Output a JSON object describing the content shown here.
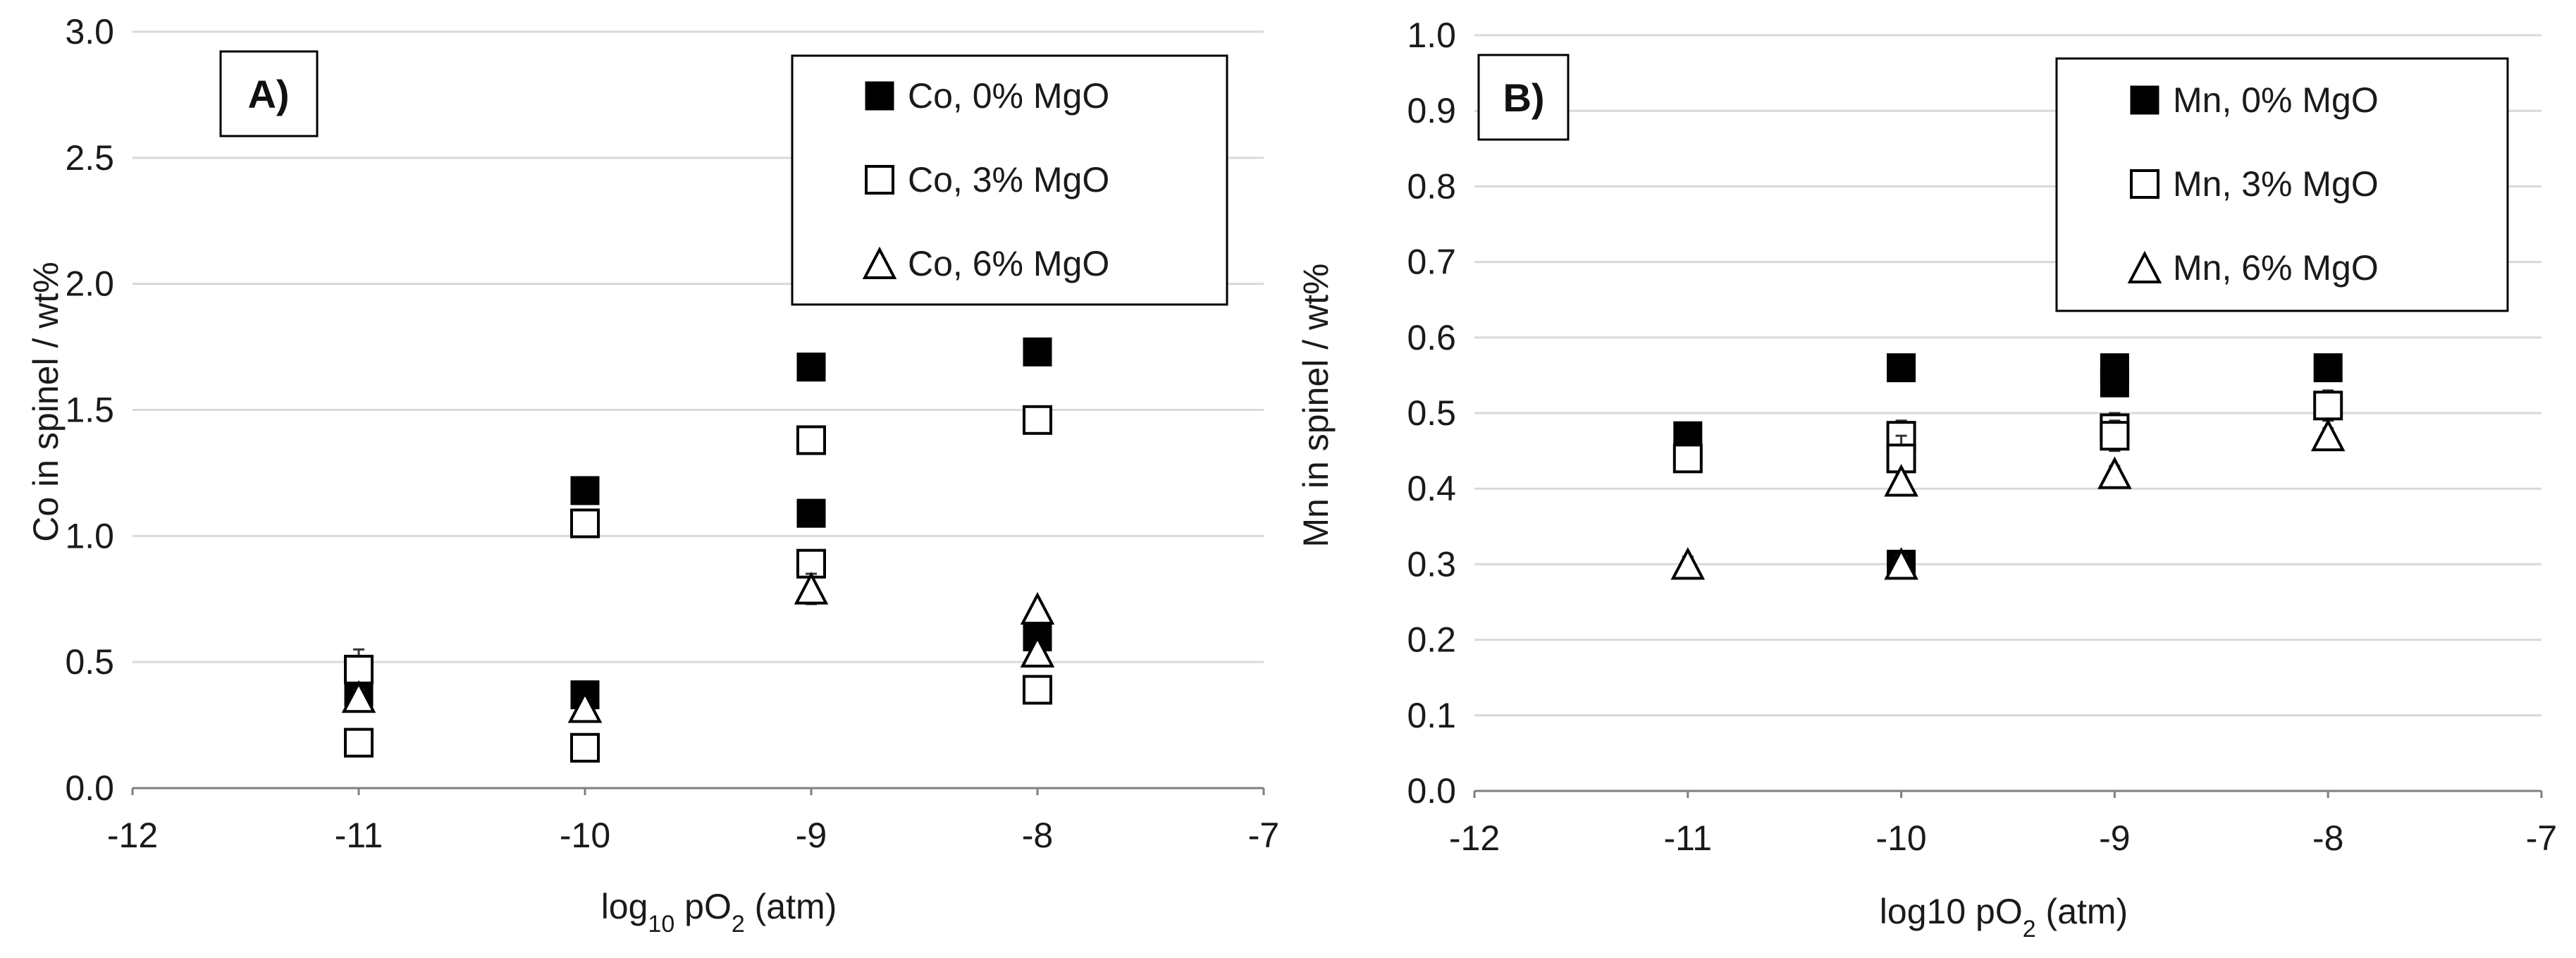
{
  "chart_data": [
    {
      "type": "scatter",
      "panel_label": "A)",
      "ylabel": "Co  in spinel / wt%",
      "xlabel": {
        "prefix": "log",
        "subscript": "10",
        "middle": " pO",
        "sub2": "2",
        "suffix": " (atm)"
      },
      "xlim": [
        -12,
        -7
      ],
      "ylim": [
        0,
        3.0
      ],
      "x_ticks": [
        -12,
        -11,
        -10,
        -9,
        -8,
        -7
      ],
      "x_tick_labels": [
        "-12",
        "-11",
        "-10",
        "-9",
        "-8",
        "-7"
      ],
      "y_ticks": [
        0,
        0.5,
        1.0,
        1.5,
        2.0,
        2.5,
        3.0
      ],
      "y_tick_labels": [
        "0.0",
        "0.5",
        "1.0",
        "1.5",
        "2.0",
        "2.5",
        "3.0"
      ],
      "grid": "horizontal",
      "legend_position": "top-right",
      "series": [
        {
          "name": "Co, 0% MgO",
          "marker": "filled-square",
          "x": [
            -11,
            -10,
            -10,
            -9,
            -9,
            -8,
            -8
          ],
          "y": [
            0.38,
            1.18,
            0.37,
            1.67,
            1.09,
            1.73,
            0.6
          ],
          "err": [
            0.02,
            0.02,
            0.02,
            0.02,
            0.02,
            0.02,
            0.02
          ]
        },
        {
          "name": "Co, 3% MgO",
          "marker": "open-square",
          "x": [
            -11,
            -11,
            -10,
            -10,
            -9,
            -9,
            -8,
            -8
          ],
          "y": [
            0.47,
            0.18,
            1.05,
            0.16,
            1.38,
            0.89,
            1.46,
            0.39
          ],
          "err": [
            0.08,
            0.03,
            0.05,
            0.02,
            0.05,
            0.03,
            0.02,
            0.02
          ]
        },
        {
          "name": "Co, 6% MgO",
          "marker": "open-triangle",
          "x": [
            -11,
            -10,
            -9,
            -8,
            -8
          ],
          "y": [
            0.36,
            0.32,
            0.79,
            0.71,
            0.54
          ],
          "err": [
            0.03,
            0.03,
            0.06,
            0.02,
            0.02
          ]
        }
      ]
    },
    {
      "type": "scatter",
      "panel_label": "B)",
      "ylabel": "Mn  in spinel / wt%",
      "xlabel": {
        "prefix": "log10",
        "subscript": "",
        "middle": " pO",
        "sub2": "2",
        "suffix": " (atm)"
      },
      "xlim": [
        -12,
        -7
      ],
      "ylim": [
        0,
        1.0
      ],
      "x_ticks": [
        -12,
        -11,
        -10,
        -9,
        -8,
        -7
      ],
      "x_tick_labels": [
        "-12",
        "-11",
        "-10",
        "-9",
        "-8",
        "-7"
      ],
      "y_ticks": [
        0,
        0.1,
        0.2,
        0.3,
        0.4,
        0.5,
        0.6,
        0.7,
        0.8,
        0.9,
        1.0
      ],
      "y_tick_labels": [
        "0.0",
        "0.1",
        "0.2",
        "0.3",
        "0.4",
        "0.5",
        "0.6",
        "0.7",
        "0.8",
        "0.9",
        "1.0"
      ],
      "grid": "horizontal",
      "legend_position": "top-right",
      "series": [
        {
          "name": "Mn, 0% MgO",
          "marker": "filled-square",
          "x": [
            -11,
            -10,
            -10,
            -9,
            -9,
            -8
          ],
          "y": [
            0.47,
            0.56,
            0.3,
            0.56,
            0.54,
            0.56
          ],
          "err": [
            0.01,
            0.01,
            0.01,
            0.01,
            0.01,
            0.01
          ]
        },
        {
          "name": "Mn, 3% MgO",
          "marker": "open-square",
          "x": [
            -11,
            -10,
            -10,
            -9,
            -9,
            -8
          ],
          "y": [
            0.44,
            0.47,
            0.44,
            0.48,
            0.47,
            0.51
          ],
          "err": [
            0.01,
            0.02,
            0.03,
            0.02,
            0.02,
            0.02
          ]
        },
        {
          "name": "Mn, 6% MgO",
          "marker": "open-triangle",
          "x": [
            -11,
            -10,
            -10,
            -9,
            -8
          ],
          "y": [
            0.3,
            0.41,
            0.3,
            0.42,
            0.47
          ],
          "err": [
            0.01,
            0.01,
            0.01,
            0.01,
            0.01
          ]
        }
      ]
    }
  ]
}
